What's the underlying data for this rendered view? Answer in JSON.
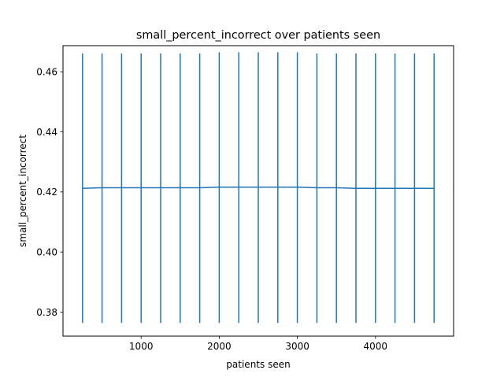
{
  "chart_data": {
    "type": "line",
    "title": "small_percent_incorrect over patients seen",
    "xlabel": "patients seen",
    "ylabel": "small_percent_incorrect",
    "xlim": [
      0,
      5000
    ],
    "ylim": [
      0.372,
      0.4687
    ],
    "x_ticks": [
      1000,
      2000,
      3000,
      4000
    ],
    "x_tick_labels": [
      "1000",
      "2000",
      "3000",
      "4000"
    ],
    "y_ticks": [
      0.38,
      0.4,
      0.42,
      0.44,
      0.46
    ],
    "y_tick_labels": [
      "0.38",
      "0.40",
      "0.42",
      "0.44",
      "0.46"
    ],
    "grid": false,
    "series": [
      {
        "color": "#1f77b4",
        "x": [
          250,
          500,
          750,
          1000,
          1250,
          1500,
          1750,
          2000,
          2250,
          2500,
          2750,
          3000,
          3250,
          3500,
          3750,
          4000,
          4250,
          4500,
          4750
        ],
        "y": [
          0.4212,
          0.4214,
          0.4214,
          0.4214,
          0.4214,
          0.4214,
          0.4214,
          0.4216,
          0.4216,
          0.4216,
          0.4216,
          0.4216,
          0.4214,
          0.4214,
          0.4212,
          0.4212,
          0.4212,
          0.4212,
          0.4212
        ],
        "error_low": [
          0.3764,
          0.3764,
          0.3764,
          0.3764,
          0.3764,
          0.3764,
          0.3764,
          0.3764,
          0.3764,
          0.3764,
          0.3764,
          0.3764,
          0.3764,
          0.3764,
          0.3764,
          0.3764,
          0.3764,
          0.3764,
          0.3764
        ],
        "error_high": [
          0.4661,
          0.4661,
          0.4661,
          0.4661,
          0.4661,
          0.4661,
          0.4661,
          0.4665,
          0.4665,
          0.4665,
          0.4665,
          0.4665,
          0.4661,
          0.4661,
          0.4661,
          0.4661,
          0.4661,
          0.4661,
          0.4661
        ]
      }
    ]
  }
}
